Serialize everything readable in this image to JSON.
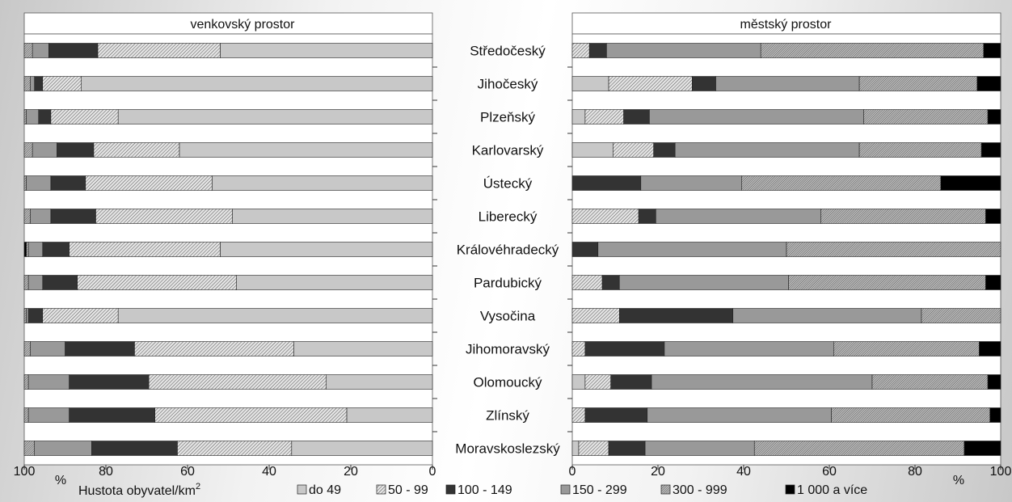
{
  "chart_data": {
    "type": "bar",
    "stacked": true,
    "orientation": "horizontal",
    "legend_title": "Hustota obyvatel/km²",
    "legend_placement": "bottom",
    "categories": [
      "Středočeský",
      "Jihočeský",
      "Plzeňský",
      "Karlovarský",
      "Ústecký",
      "Liberecký",
      "Královéhradecký",
      "Pardubický",
      "Vysočina",
      "Jihomoravský",
      "Olomoucký",
      "Zlínský",
      "Moravskoslezský"
    ],
    "series_colors": [
      "#c8c8c8",
      "hatch-light",
      "#333333",
      "#999999",
      "hatch-dense",
      "#000000"
    ],
    "panels": [
      {
        "title": "venkovský prostor",
        "axis_unit": "%",
        "axis_reversed": true,
        "xlim": [
          0,
          100
        ],
        "ticks": [
          "100",
          "80",
          "60",
          "40",
          "20",
          "0"
        ],
        "series": [
          {
            "name": "do 49",
            "values": [
              52,
              86,
              77,
              62,
              54,
              49,
              52,
              48,
              77,
              34,
              26,
              21,
              34.5
            ]
          },
          {
            "name": "50 - 99",
            "values": [
              30,
              9.5,
              16.5,
              21,
              31,
              33.5,
              37,
              39,
              18.5,
              39,
              43.5,
              47,
              28
            ]
          },
          {
            "name": "100 - 149",
            "values": [
              12,
              2,
              3,
              9,
              8.5,
              11,
              6.5,
              8.5,
              3.5,
              17,
              19.5,
              21,
              21
            ]
          },
          {
            "name": "150 - 299",
            "values": [
              4,
              1,
              3,
              6,
              6,
              5,
              3.5,
              3.5,
              0.5,
              8.5,
              10,
              10,
              14
            ]
          },
          {
            "name": "300 - 999",
            "values": [
              2,
              1.5,
              0.5,
              2,
              0.5,
              1.5,
              0.5,
              1,
              0.5,
              1.5,
              1,
              1,
              2.5
            ]
          },
          {
            "name": "1 000 a více",
            "values": [
              0,
              0,
              0,
              0,
              0,
              0,
              0.5,
              0,
              0,
              0,
              0,
              0,
              0
            ]
          }
        ]
      },
      {
        "title": "městský prostor",
        "axis_unit": "%",
        "axis_reversed": false,
        "xlim": [
          0,
          100
        ],
        "ticks": [
          "0",
          "20",
          "40",
          "60",
          "80",
          "100"
        ],
        "series": [
          {
            "name": "do 49",
            "values": [
              0,
              8.5,
              3,
              9.5,
              0,
              0,
              0,
              0,
              0,
              0,
              3,
              0,
              1.5
            ]
          },
          {
            "name": "50 - 99",
            "values": [
              4,
              19.5,
              9,
              9.5,
              0,
              15.5,
              0,
              7,
              11,
              3,
              6,
              3,
              7
            ]
          },
          {
            "name": "100 - 149",
            "values": [
              4,
              5.5,
              6,
              5,
              16,
              4,
              6,
              4,
              26.5,
              18.5,
              9.5,
              14.5,
              8.5
            ]
          },
          {
            "name": "150 - 299",
            "values": [
              36,
              33.5,
              50,
              43,
              23.5,
              38.5,
              44,
              39.5,
              44,
              39.5,
              51.5,
              43,
              25.5
            ]
          },
          {
            "name": "300 - 999",
            "values": [
              52,
              27.5,
              29,
              28.5,
              46.5,
              38.5,
              50,
              46,
              18.5,
              34,
              27,
              37,
              49
            ]
          },
          {
            "name": "1 000 a více",
            "values": [
              4,
              5.5,
              3,
              4.5,
              14,
              3.5,
              0,
              3.5,
              0,
              5,
              3,
              2.5,
              8.5
            ]
          }
        ]
      }
    ]
  }
}
